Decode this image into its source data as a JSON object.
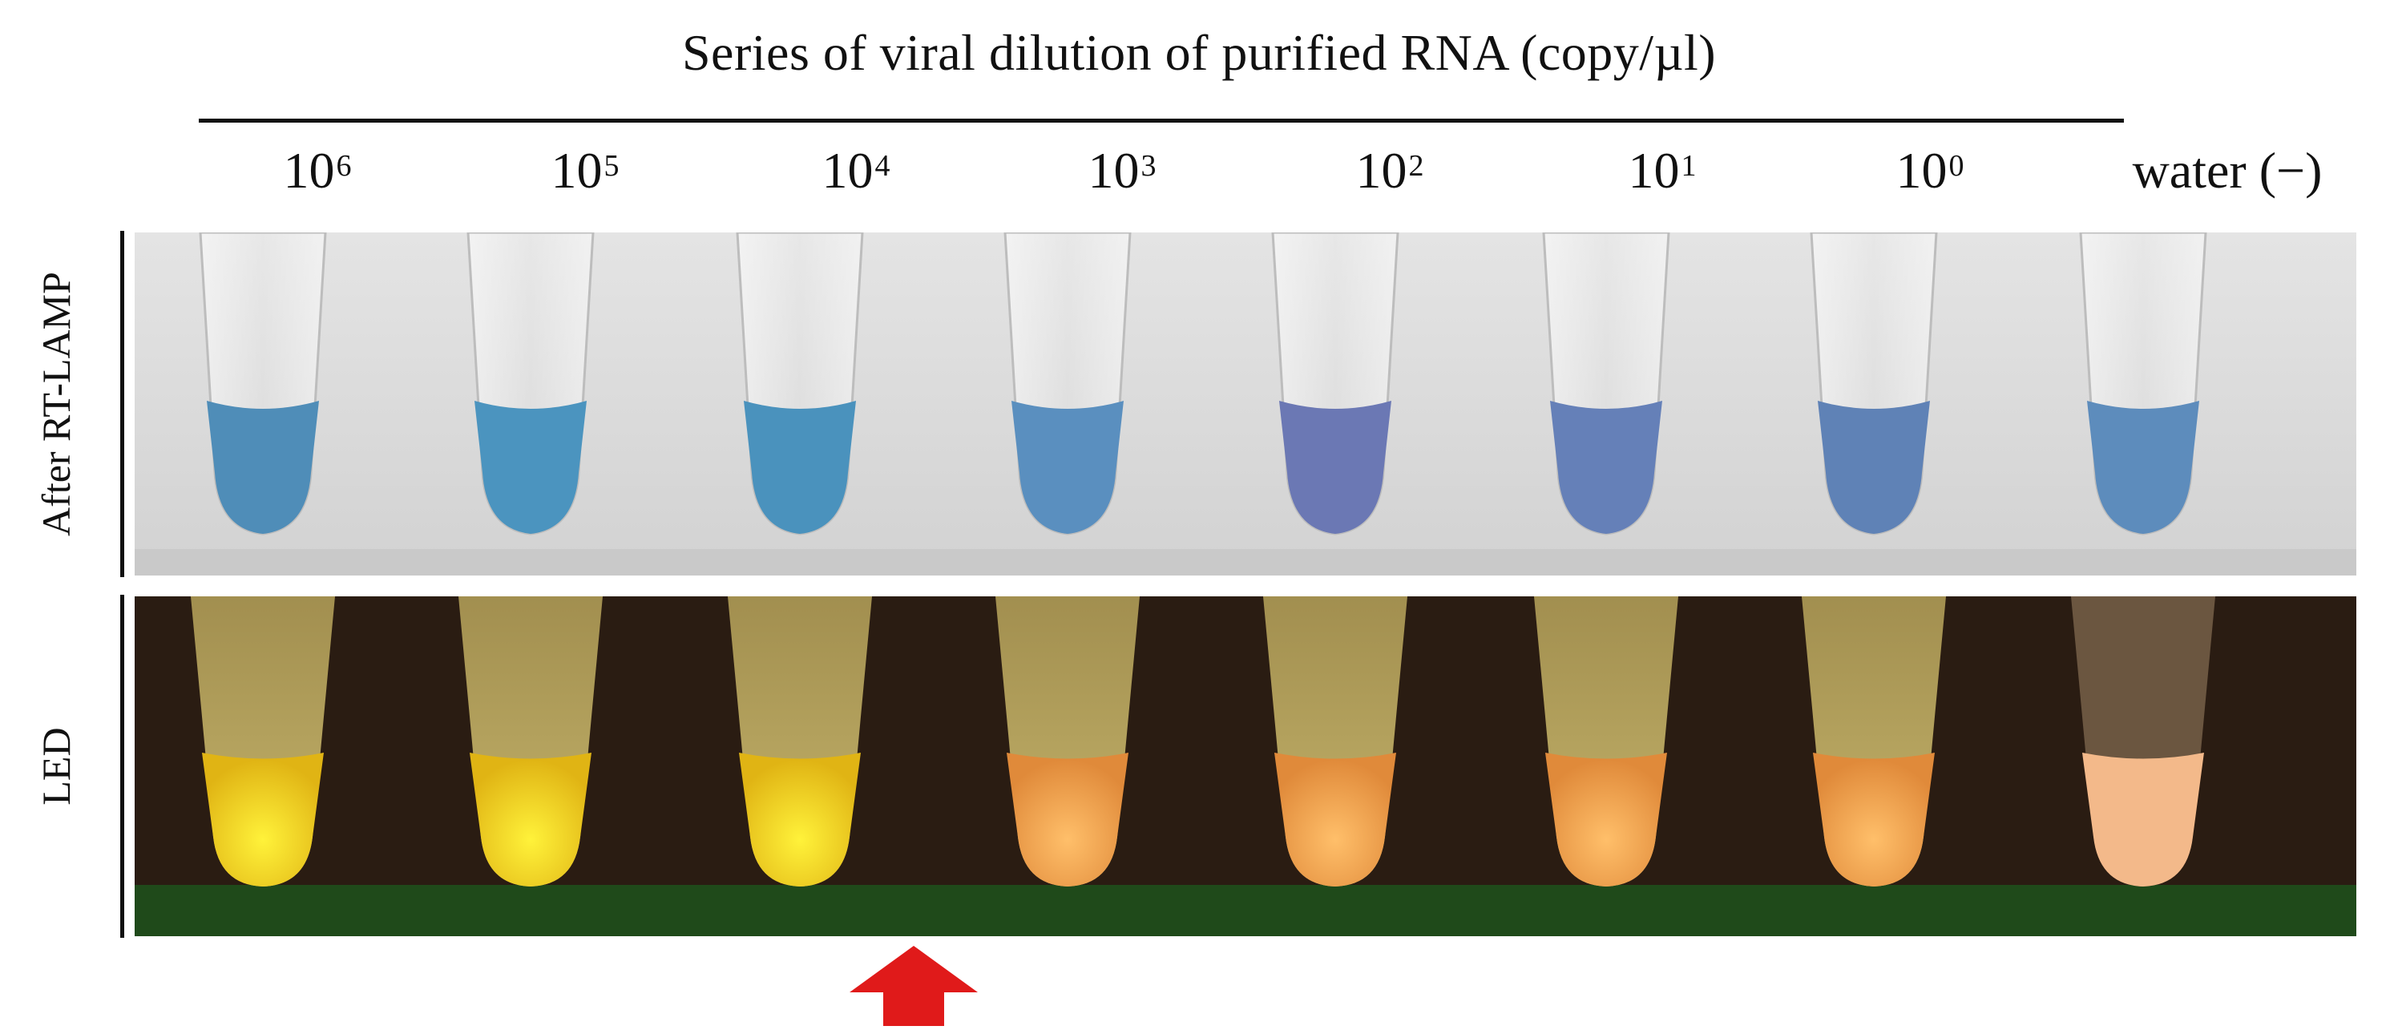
{
  "figure": {
    "title": "Series of viral dilution of purified RNA (copy/µl)",
    "columns": [
      {
        "base": "10",
        "exp": "6"
      },
      {
        "base": "10",
        "exp": "5"
      },
      {
        "base": "10",
        "exp": "4"
      },
      {
        "base": "10",
        "exp": "3"
      },
      {
        "base": "10",
        "exp": "2"
      },
      {
        "base": "10",
        "exp": "1"
      },
      {
        "base": "10",
        "exp": "0"
      },
      {
        "base": "water (−)",
        "exp": ""
      }
    ],
    "rows": [
      {
        "label": "After RT-LAMP"
      },
      {
        "label": "LED"
      }
    ],
    "colors": {
      "top_background": "#dcdcdc",
      "blue_tube_liquid": "#4f8db8",
      "purple_tube_liquid": "#6b78b4",
      "led_background": "#2a1c12",
      "led_yellow": "#f2e21c",
      "led_orange": "#f2a24a",
      "arrow": "#e01a1a"
    }
  }
}
